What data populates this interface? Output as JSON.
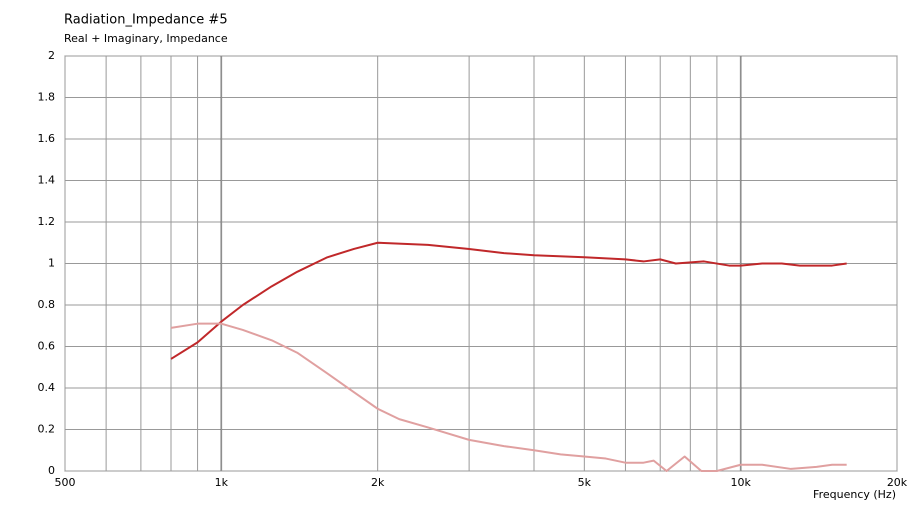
{
  "chart_data": {
    "type": "line",
    "title": "Radiation_Impedance #5",
    "subtitle": "Real + Imaginary, Impedance",
    "x_label": "Frequency (Hz)",
    "x_log": true,
    "xlim": [
      500,
      20000
    ],
    "xticks": [
      500,
      {
        "value": 1000,
        "label": "1k"
      },
      {
        "value": 2000,
        "label": "2k"
      },
      {
        "value": 5000,
        "label": "5k"
      },
      {
        "value": 10000,
        "label": "10k"
      },
      {
        "value": 20000,
        "label": "20k"
      }
    ],
    "x_minor_ticks": [
      600,
      700,
      800,
      900,
      3000,
      4000,
      6000,
      7000,
      8000,
      9000
    ],
    "x_major_grid": [
      1000,
      10000
    ],
    "ylim": [
      0,
      2
    ],
    "yticks": [
      0,
      0.2,
      0.4,
      0.6,
      0.8,
      1,
      1.2,
      1.4,
      1.6,
      1.8,
      2
    ],
    "grid": true,
    "series": [
      {
        "color": "#c0282a",
        "x": [
          800,
          900,
          1000,
          1100,
          1250,
          1400,
          1600,
          1800,
          2000,
          2500,
          3000,
          3500,
          4000,
          5000,
          6000,
          6500,
          7000,
          7500,
          8500,
          9500,
          10000,
          11000,
          12000,
          13000,
          15000,
          16000
        ],
        "values": [
          0.54,
          0.62,
          0.72,
          0.8,
          0.89,
          0.96,
          1.03,
          1.07,
          1.1,
          1.09,
          1.07,
          1.05,
          1.04,
          1.03,
          1.02,
          1.01,
          1.02,
          1.0,
          1.01,
          0.99,
          0.99,
          1.0,
          1.0,
          0.99,
          0.99,
          1.0
        ]
      },
      {
        "color": "#e0a0a0",
        "x": [
          800,
          900,
          1000,
          1100,
          1250,
          1400,
          1600,
          1800,
          2000,
          2200,
          2500,
          3000,
          3500,
          4000,
          4500,
          5000,
          5500,
          6000,
          6500,
          6800,
          7200,
          7800,
          8400,
          9000,
          10000,
          11000,
          12500,
          14000,
          15000,
          16000
        ],
        "values": [
          0.69,
          0.71,
          0.71,
          0.68,
          0.63,
          0.57,
          0.47,
          0.38,
          0.3,
          0.25,
          0.21,
          0.15,
          0.12,
          0.1,
          0.08,
          0.07,
          0.06,
          0.04,
          0.04,
          0.05,
          0.0,
          0.07,
          0.0,
          0.0,
          0.03,
          0.03,
          0.01,
          0.02,
          0.03,
          0.03
        ]
      }
    ]
  }
}
